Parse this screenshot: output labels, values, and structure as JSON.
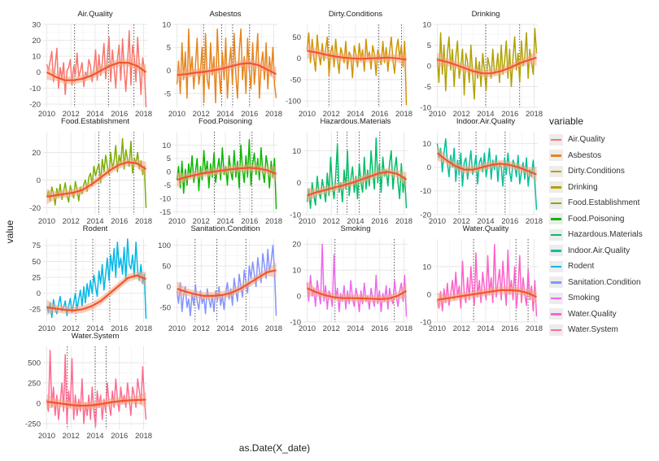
{
  "chart_data": {
    "type": "line",
    "xlabel": "as.Date(X_date)",
    "ylabel": "value",
    "legend_title": "variable",
    "legend_position": "right",
    "grid": true,
    "x_ticks": [
      "2010",
      "2012",
      "2014",
      "2016",
      "2018"
    ],
    "panels": [
      {
        "name": "Air.Quality",
        "color": "#F8766D",
        "ylim": [
          -22,
          30
        ],
        "yticks": [
          -20,
          -10,
          0,
          10,
          20,
          30
        ],
        "noise": [
          5,
          1,
          7,
          13,
          -6,
          4,
          15,
          -10,
          3,
          -4,
          6,
          -14,
          1,
          3,
          8,
          -8,
          4,
          -2,
          12,
          -3,
          1,
          6,
          -9,
          0,
          -3,
          8,
          4,
          -6,
          2,
          14,
          -5,
          11,
          -2,
          6,
          18,
          -4,
          9,
          22,
          -6,
          14,
          3,
          -10,
          8,
          17,
          -5,
          21,
          2,
          -12,
          6,
          26,
          -8,
          17,
          10,
          -6,
          22,
          4,
          -14,
          9,
          2,
          -22
        ],
        "smooth": [
          0,
          -3,
          -5,
          -5,
          -4,
          -2,
          1,
          4,
          6,
          6,
          4,
          0
        ],
        "vlines": [
          2012.3,
          2015.1,
          2017.2
        ]
      },
      {
        "name": "Asbestos",
        "color": "#E7851E",
        "ylim": [
          -8,
          10
        ],
        "yticks": [
          -5,
          0,
          5,
          10
        ],
        "noise": [
          -3,
          2,
          -5,
          6,
          -2,
          4,
          -6,
          9,
          -1,
          3,
          -4,
          1,
          7,
          -3,
          0,
          5,
          -7,
          8,
          -2,
          -4,
          6,
          -1,
          3,
          -7,
          9,
          0,
          -5,
          4,
          -2,
          7,
          -6,
          1,
          5,
          -3,
          8,
          -1,
          -6,
          4,
          9,
          -2,
          3,
          -5,
          7,
          0,
          -4,
          6,
          -3,
          2,
          8,
          -6,
          1,
          4,
          -2,
          6,
          -4,
          3,
          -1,
          5,
          -3,
          -6
        ],
        "smooth": [
          -1,
          -0.8,
          -0.5,
          -0.3,
          0,
          0.4,
          0.9,
          1.4,
          1.6,
          1.2,
          0.2,
          -0.8
        ],
        "vlines": [
          2012.2,
          2013.7,
          2014.6,
          2016.0
        ]
      },
      {
        "name": "Dirty.Conditions",
        "color": "#D09400",
        "ylim": [
          -115,
          80
        ],
        "yticks": [
          -100,
          -50,
          0,
          50
        ],
        "noise": [
          20,
          60,
          -10,
          45,
          5,
          -30,
          55,
          10,
          -15,
          35,
          -5,
          20,
          50,
          -40,
          15,
          30,
          -20,
          45,
          0,
          -35,
          25,
          10,
          -10,
          40,
          -25,
          15,
          5,
          -45,
          30,
          10,
          -20,
          35,
          -5,
          20,
          -30,
          45,
          0,
          15,
          -25,
          30,
          10,
          -40,
          20,
          5,
          -15,
          40,
          -10,
          25,
          -30,
          15,
          50,
          -5,
          -35,
          20,
          45,
          0,
          30,
          -20,
          40,
          -110
        ],
        "smooth": [
          18,
          14,
          9,
          5,
          2,
          0,
          -1,
          0,
          1,
          2,
          0,
          -3
        ],
        "vlines": [
          2011.8,
          2015.9,
          2017.8
        ]
      },
      {
        "name": "Drinking",
        "color": "#B2A100",
        "ylim": [
          -10,
          10
        ],
        "yticks": [
          -10,
          -5,
          0,
          5,
          10
        ],
        "noise": [
          2,
          -4,
          8,
          -2,
          5,
          -6,
          3,
          7,
          -1,
          4,
          -5,
          2,
          6,
          -3,
          0,
          4,
          -7,
          3,
          1,
          -4,
          5,
          -2,
          -8,
          2,
          -3,
          1,
          -5,
          3,
          -1,
          -6,
          2,
          0,
          -3,
          4,
          -2,
          -1,
          3,
          -4,
          5,
          -2,
          1,
          6,
          -3,
          4,
          -5,
          2,
          7,
          -1,
          3,
          -4,
          6,
          0,
          2,
          8,
          -3,
          4,
          1,
          -2,
          9,
          3
        ],
        "smooth": [
          1.5,
          1,
          0.3,
          -0.5,
          -1.3,
          -1.8,
          -1.8,
          -1.3,
          -0.5,
          0.5,
          1.3,
          2
        ],
        "vlines": [
          2014.0,
          2016.8
        ]
      },
      {
        "name": "Food.Establishment",
        "color": "#7CAE00",
        "ylim": [
          -25,
          35
        ],
        "yticks": [
          -20,
          0,
          20
        ],
        "noise": [
          -12,
          -8,
          -15,
          -5,
          -10,
          -18,
          -6,
          -12,
          -3,
          -14,
          -8,
          -2,
          -11,
          -16,
          -4,
          -9,
          -13,
          -1,
          -7,
          -15,
          -5,
          -10,
          -3,
          0,
          -8,
          2,
          5,
          -4,
          10,
          3,
          8,
          12,
          -2,
          15,
          6,
          18,
          10,
          4,
          20,
          8,
          14,
          25,
          6,
          18,
          12,
          30,
          8,
          22,
          15,
          10,
          28,
          5,
          16,
          12,
          20,
          8,
          14,
          4,
          10,
          -20
        ],
        "smooth": [
          -12,
          -11,
          -10,
          -9,
          -7,
          -3,
          2,
          7,
          11,
          13,
          12,
          8
        ],
        "vlines": [
          2014.3,
          2015.2,
          2017.2
        ]
      },
      {
        "name": "Food.Poisoning",
        "color": "#0CB702",
        "ylim": [
          -16,
          15
        ],
        "yticks": [
          -15,
          -10,
          -5,
          0,
          5,
          10
        ],
        "noise": [
          -3,
          2,
          -6,
          4,
          -8,
          1,
          -5,
          3,
          -2,
          6,
          -4,
          0,
          5,
          -7,
          2,
          -3,
          8,
          -1,
          4,
          -6,
          3,
          -2,
          7,
          -4,
          1,
          5,
          -3,
          9,
          -1,
          2,
          -5,
          6,
          0,
          -3,
          8,
          -2,
          4,
          -6,
          10,
          1,
          -4,
          6,
          -2,
          12,
          -5,
          3,
          7,
          -1,
          5,
          -3,
          9,
          0,
          -4,
          6,
          2,
          -6,
          4,
          -2,
          5,
          -14
        ],
        "smooth": [
          -3,
          -2,
          -1.2,
          -0.5,
          0,
          0.5,
          1,
          1.3,
          1.5,
          1.3,
          0.6,
          -0.8
        ],
        "vlines": [
          2013.1,
          2015.2,
          2016.2
        ]
      },
      {
        "name": "Hazardous.Materials",
        "color": "#00BE67",
        "ylim": [
          -10,
          16
        ],
        "yticks": [
          -10,
          0,
          10
        ],
        "noise": [
          -6,
          -2,
          -8,
          0,
          -4,
          -7,
          2,
          -3,
          -5,
          1,
          -2,
          -6,
          3,
          -4,
          8,
          -1,
          -5,
          2,
          12,
          -3,
          0,
          -6,
          4,
          -2,
          10,
          -4,
          1,
          5,
          -3,
          2,
          -5,
          6,
          0,
          -3,
          8,
          -2,
          4,
          -1,
          10,
          3,
          -2,
          14,
          0,
          6,
          -3,
          8,
          2,
          4,
          -1,
          6,
          10,
          -2,
          4,
          8,
          0,
          -5,
          6,
          -3,
          2,
          -8
        ],
        "smooth": [
          -4,
          -3,
          -2.3,
          -1.5,
          -0.8,
          0,
          1,
          2,
          3,
          3.4,
          2.8,
          1
        ],
        "vlines": [
          2012.5,
          2013.3,
          2014.3,
          2016.0
        ]
      },
      {
        "name": "Indoor.Air.Quality",
        "color": "#00C19A",
        "ylim": [
          -20,
          15
        ],
        "yticks": [
          -20,
          -10,
          0,
          10
        ],
        "noise": [
          10,
          4,
          8,
          -2,
          6,
          12,
          2,
          -4,
          5,
          0,
          8,
          -6,
          3,
          -3,
          6,
          -8,
          2,
          4,
          -5,
          1,
          7,
          -3,
          0,
          5,
          -7,
          2,
          4,
          -2,
          6,
          -4,
          1,
          8,
          -5,
          3,
          -1,
          5,
          -6,
          2,
          0,
          -8,
          4,
          -3,
          6,
          -2,
          -6,
          3,
          1,
          -4,
          5,
          -7,
          -2,
          2,
          -5,
          4,
          -8,
          -1,
          -4,
          3,
          -6,
          -18
        ],
        "smooth": [
          6,
          3,
          0.5,
          -1,
          -1,
          0,
          1,
          1.5,
          1,
          0,
          -1.5,
          -3
        ],
        "vlines": [
          2011.8,
          2013.2,
          2015.6
        ]
      },
      {
        "name": "Rodent",
        "color": "#00B8E7",
        "ylim": [
          -45,
          85
        ],
        "yticks": [
          -25,
          0,
          25,
          50,
          75
        ],
        "noise": [
          -20,
          -30,
          -15,
          -38,
          -10,
          -25,
          -32,
          -18,
          -5,
          -28,
          -22,
          -12,
          -35,
          -20,
          -8,
          -30,
          -15,
          0,
          -25,
          -10,
          5,
          -20,
          10,
          -15,
          15,
          -5,
          20,
          0,
          28,
          10,
          -5,
          35,
          15,
          45,
          5,
          30,
          55,
          20,
          60,
          35,
          70,
          25,
          80,
          40,
          55,
          30,
          72,
          20,
          85,
          45,
          38,
          60,
          25,
          80,
          35,
          20,
          45,
          15,
          30,
          -40
        ],
        "smooth": [
          -22,
          -24,
          -26,
          -27,
          -25,
          -20,
          -12,
          0,
          12,
          24,
          28,
          22
        ],
        "vlines": [
          2012.4,
          2013.8,
          2015.2
        ]
      },
      {
        "name": "Sanitation.Condition",
        "color": "#8494FF",
        "ylim": [
          -85,
          115
        ],
        "yticks": [
          -50,
          0,
          50,
          100
        ],
        "noise": [
          -10,
          -40,
          10,
          -60,
          -20,
          0,
          -50,
          -30,
          -70,
          -15,
          -45,
          5,
          -35,
          -55,
          -10,
          -40,
          -25,
          -65,
          -5,
          -30,
          -50,
          -20,
          -60,
          -10,
          -35,
          0,
          -45,
          -20,
          -55,
          -15,
          10,
          -30,
          -5,
          -45,
          20,
          -10,
          -35,
          30,
          0,
          -25,
          40,
          10,
          -15,
          50,
          20,
          60,
          30,
          0,
          70,
          40,
          10,
          80,
          50,
          20,
          90,
          35,
          60,
          100,
          40,
          -70
        ],
        "smooth": [
          -5,
          -12,
          -18,
          -22,
          -22,
          -20,
          -15,
          -5,
          8,
          22,
          35,
          40
        ],
        "vlines": [
          2011.5,
          2013.3,
          2015.7
        ]
      },
      {
        "name": "Smoking",
        "color": "#ED68ED",
        "ylim": [
          -10,
          22
        ],
        "yticks": [
          -10,
          0,
          10,
          20
        ],
        "noise": [
          5,
          -2,
          8,
          0,
          3,
          -4,
          6,
          1,
          -3,
          20,
          -2,
          4,
          -5,
          2,
          0,
          -4,
          16,
          -1,
          3,
          -6,
          1,
          -2,
          4,
          -5,
          2,
          -3,
          6,
          -1,
          -4,
          3,
          0,
          -6,
          2,
          -3,
          5,
          -2,
          0,
          -5,
          3,
          -1,
          -4,
          8,
          -3,
          2,
          -6,
          1,
          -2,
          4,
          -5,
          3,
          -1,
          -3,
          6,
          0,
          -4,
          2,
          5,
          -2,
          8,
          -8
        ],
        "smooth": [
          3,
          1.5,
          0.3,
          -0.5,
          -0.8,
          -0.8,
          -0.9,
          -1,
          -1.2,
          -1,
          0,
          2
        ],
        "vlines": [
          2012.3,
          2017.2
        ]
      },
      {
        "name": "Water.Quality",
        "color": "#FF61C9",
        "ylim": [
          -10,
          20
        ],
        "yticks": [
          -10,
          0,
          10
        ],
        "noise": [
          -2,
          -5,
          1,
          -6,
          2,
          -3,
          4,
          -4,
          0,
          5,
          -2,
          8,
          -1,
          3,
          -5,
          12,
          0,
          -3,
          6,
          -2,
          10,
          1,
          -4,
          15,
          -1,
          5,
          -3,
          8,
          2,
          -2,
          14,
          0,
          6,
          -3,
          18,
          -1,
          4,
          9,
          -2,
          12,
          3,
          -4,
          16,
          0,
          5,
          -2,
          10,
          -5,
          2,
          14,
          -3,
          6,
          0,
          -4,
          9,
          -2,
          3,
          -6,
          5,
          -8
        ],
        "smooth": [
          -2,
          -1.5,
          -1,
          -0.5,
          0,
          0.5,
          1,
          1.5,
          1.5,
          1.3,
          0.5,
          -1
        ],
        "vlines": [
          2013.0,
          2016.5,
          2017.5
        ]
      },
      {
        "name": "Water.System",
        "color": "#FF6C91",
        "ylim": [
          -320,
          700
        ],
        "yticks": [
          -250,
          0,
          250,
          500
        ],
        "noise": [
          50,
          -100,
          650,
          -50,
          200,
          -150,
          100,
          -200,
          0,
          250,
          -100,
          600,
          -250,
          150,
          -50,
          550,
          -200,
          100,
          -150,
          50,
          -100,
          300,
          -250,
          0,
          -150,
          100,
          -200,
          200,
          -100,
          -280,
          150,
          -50,
          100,
          -200,
          50,
          -100,
          250,
          0,
          -150,
          150,
          -50,
          300,
          50,
          -100,
          200,
          0,
          100,
          -50,
          250,
          50,
          -150,
          200,
          100,
          -50,
          300,
          150,
          0,
          450,
          50,
          -200
        ],
        "smooth": [
          20,
          5,
          -10,
          -25,
          -30,
          -25,
          -10,
          10,
          25,
          35,
          40,
          45
        ],
        "vlines": [
          2011.7,
          2014.0,
          2014.9
        ]
      }
    ]
  }
}
